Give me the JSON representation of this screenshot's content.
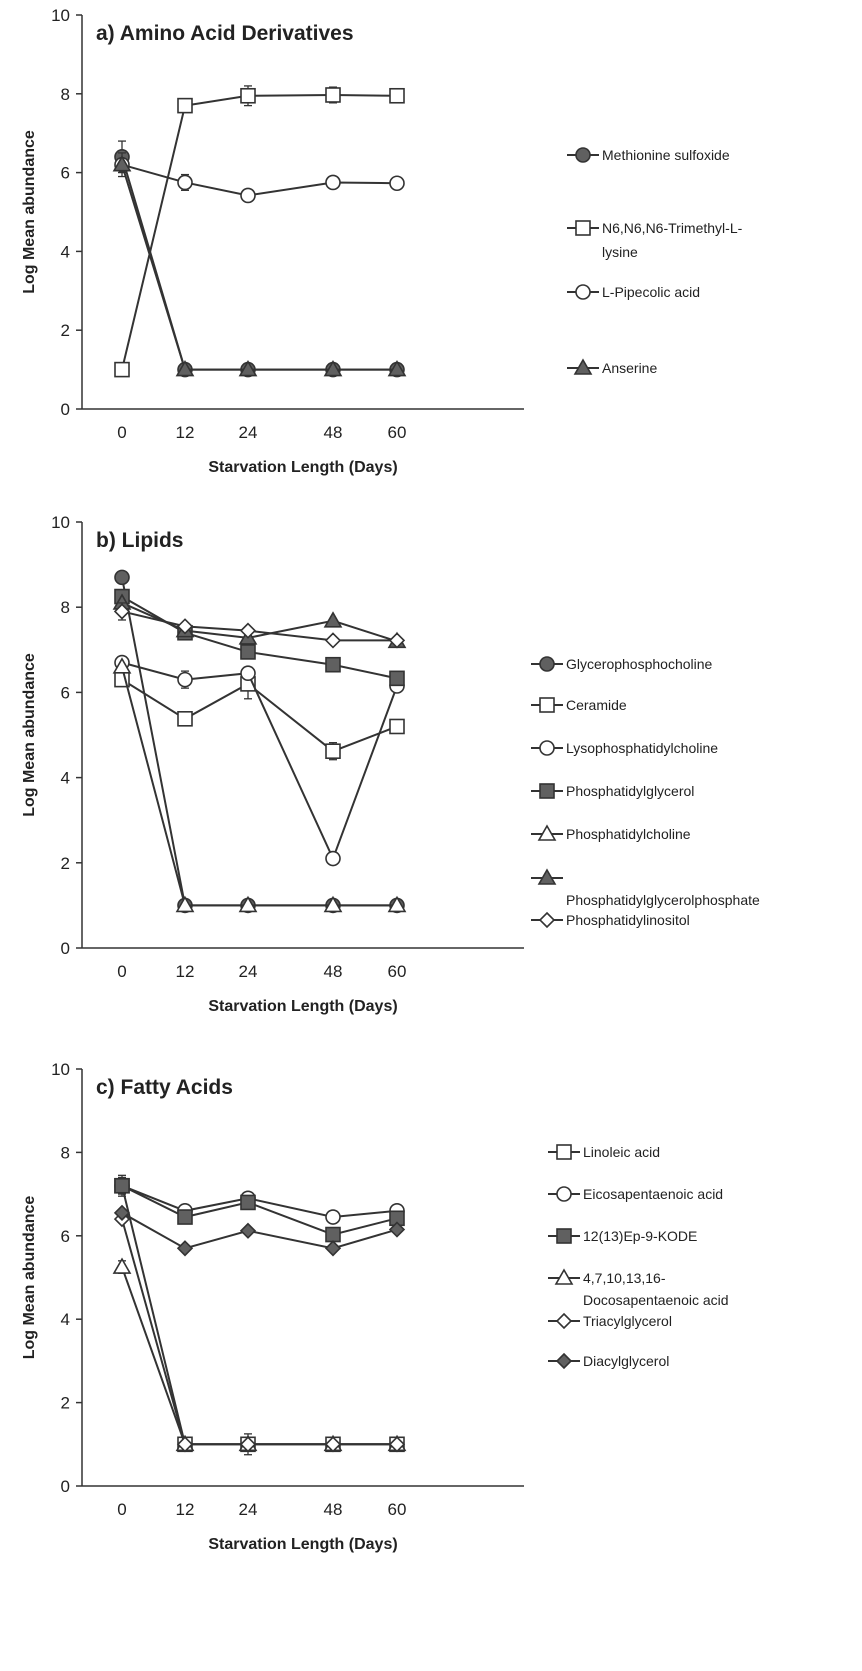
{
  "chart_data": [
    {
      "type": "line",
      "title": "a)  Amino Acid Derivatives",
      "xlabel": "Starvation Length (Days)",
      "ylabel": "Log Mean abundance",
      "categories": [
        "0",
        "12",
        "24",
        "48",
        "60"
      ],
      "ylim": [
        0,
        10
      ],
      "yticks": [
        "0",
        "2",
        "4",
        "6",
        "8",
        "10"
      ],
      "grid": false,
      "legend_position": "right",
      "series": [
        {
          "name": "Methionine sulfoxide",
          "marker": "circle",
          "fill": "#606060",
          "values": [
            6.4,
            1.0,
            1.0,
            1.0,
            1.0
          ],
          "errors": [
            0.4,
            0,
            0,
            0,
            0
          ]
        },
        {
          "name": "N6,N6,N6-Trimethyl-L-lysine",
          "marker": "square",
          "fill": "#ffffff",
          "values": [
            1.0,
            7.7,
            7.95,
            7.97,
            7.95
          ],
          "errors": [
            0,
            0,
            0.25,
            0.2,
            0
          ]
        },
        {
          "name": "L-Pipecolic acid",
          "marker": "circle",
          "fill": "#ffffff",
          "values": [
            6.2,
            5.75,
            5.42,
            5.75,
            5.73
          ],
          "errors": [
            0.3,
            0.2,
            0.15,
            0.15,
            0
          ]
        },
        {
          "name": "Anserine",
          "marker": "triangle",
          "fill": "#606060",
          "values": [
            6.2,
            1.0,
            1.0,
            1.0,
            1.0
          ],
          "errors": [
            0,
            0,
            0,
            0,
            0
          ]
        }
      ]
    },
    {
      "type": "line",
      "title": "b)   Lipids",
      "xlabel": "Starvation Length (Days)",
      "ylabel": "Log Mean abundance",
      "categories": [
        "0",
        "12",
        "24",
        "48",
        "60"
      ],
      "ylim": [
        0,
        10
      ],
      "yticks": [
        "0",
        "2",
        "4",
        "6",
        "8",
        "10"
      ],
      "grid": false,
      "legend_position": "right",
      "series": [
        {
          "name": "Glycerophosphocholine",
          "marker": "circle",
          "fill": "#606060",
          "values": [
            8.7,
            1.0,
            1.0,
            1.0,
            1.0
          ],
          "errors": [
            0,
            0,
            0,
            0,
            0
          ]
        },
        {
          "name": "Ceramide",
          "marker": "square",
          "fill": "#ffffff",
          "values": [
            6.3,
            5.38,
            6.2,
            4.62,
            5.2
          ],
          "errors": [
            0,
            0.15,
            0.35,
            0.2,
            0
          ]
        },
        {
          "name": "Lysophosphatidylcholine",
          "marker": "circle",
          "fill": "#ffffff",
          "values": [
            6.7,
            6.3,
            6.45,
            2.1,
            6.15
          ],
          "errors": [
            0,
            0.2,
            0,
            0,
            0
          ]
        },
        {
          "name": "Phosphatidylglycerol",
          "marker": "square",
          "fill": "#606060",
          "values": [
            8.25,
            7.4,
            6.95,
            6.65,
            6.33
          ],
          "errors": [
            0,
            0,
            0,
            0,
            0
          ]
        },
        {
          "name": "Phosphatidylcholine",
          "marker": "triangle",
          "fill": "#ffffff",
          "values": [
            6.6,
            1.0,
            1.0,
            1.0,
            1.0
          ],
          "errors": [
            0,
            0,
            0,
            0,
            0
          ]
        },
        {
          "name": "Phosphatidylglycerolphosphate",
          "marker": "triangle",
          "fill": "#606060",
          "values": [
            8.1,
            7.45,
            7.28,
            7.68,
            7.2
          ],
          "errors": [
            0,
            0,
            0,
            0,
            0
          ]
        },
        {
          "name": "Phosphatidylinositol",
          "marker": "diamond",
          "fill": "#ffffff",
          "values": [
            7.9,
            7.55,
            7.45,
            7.22,
            7.22
          ],
          "errors": [
            0.2,
            0,
            0,
            0,
            0
          ]
        }
      ]
    },
    {
      "type": "line",
      "title": "c) Fatty Acids",
      "xlabel": "Starvation Length (Days)",
      "ylabel": "Log Mean abundance",
      "categories": [
        "0",
        "12",
        "24",
        "48",
        "60"
      ],
      "ylim": [
        0,
        10
      ],
      "yticks": [
        "0",
        "2",
        "4",
        "6",
        "8",
        "10"
      ],
      "grid": false,
      "legend_position": "right",
      "series": [
        {
          "name": "Linoleic acid",
          "marker": "square",
          "fill": "#ffffff",
          "values": [
            7.2,
            1.0,
            1.0,
            1.0,
            1.0
          ],
          "errors": [
            0.25,
            0,
            0.25,
            0.15,
            0
          ]
        },
        {
          "name": "Eicosapentaenoic acid",
          "marker": "circle",
          "fill": "#ffffff",
          "values": [
            7.2,
            6.6,
            6.9,
            6.45,
            6.6
          ],
          "errors": [
            0,
            0.15,
            0,
            0.1,
            0
          ]
        },
        {
          "name": "12(13)Ep-9-KODE",
          "marker": "square",
          "fill": "#606060",
          "values": [
            7.2,
            6.45,
            6.8,
            6.03,
            6.42
          ],
          "errors": [
            0.2,
            0,
            0,
            0,
            0
          ]
        },
        {
          "name": "4,7,10,13,16-Docosapentaenoic acid",
          "marker": "triangle",
          "fill": "#ffffff",
          "values": [
            5.25,
            1.0,
            1.0,
            1.0,
            1.0
          ],
          "errors": [
            0.15,
            0,
            0,
            0,
            0
          ]
        },
        {
          "name": "Triacylglycerol",
          "marker": "diamond",
          "fill": "#ffffff",
          "values": [
            6.4,
            1.0,
            1.0,
            1.0,
            1.0
          ],
          "errors": [
            0,
            0,
            0,
            0,
            0
          ]
        },
        {
          "name": "Diacylglycerol",
          "marker": "diamond",
          "fill": "#606060",
          "values": [
            6.55,
            5.7,
            6.12,
            5.7,
            6.15
          ],
          "errors": [
            0,
            0,
            0,
            0,
            0
          ]
        }
      ]
    }
  ]
}
